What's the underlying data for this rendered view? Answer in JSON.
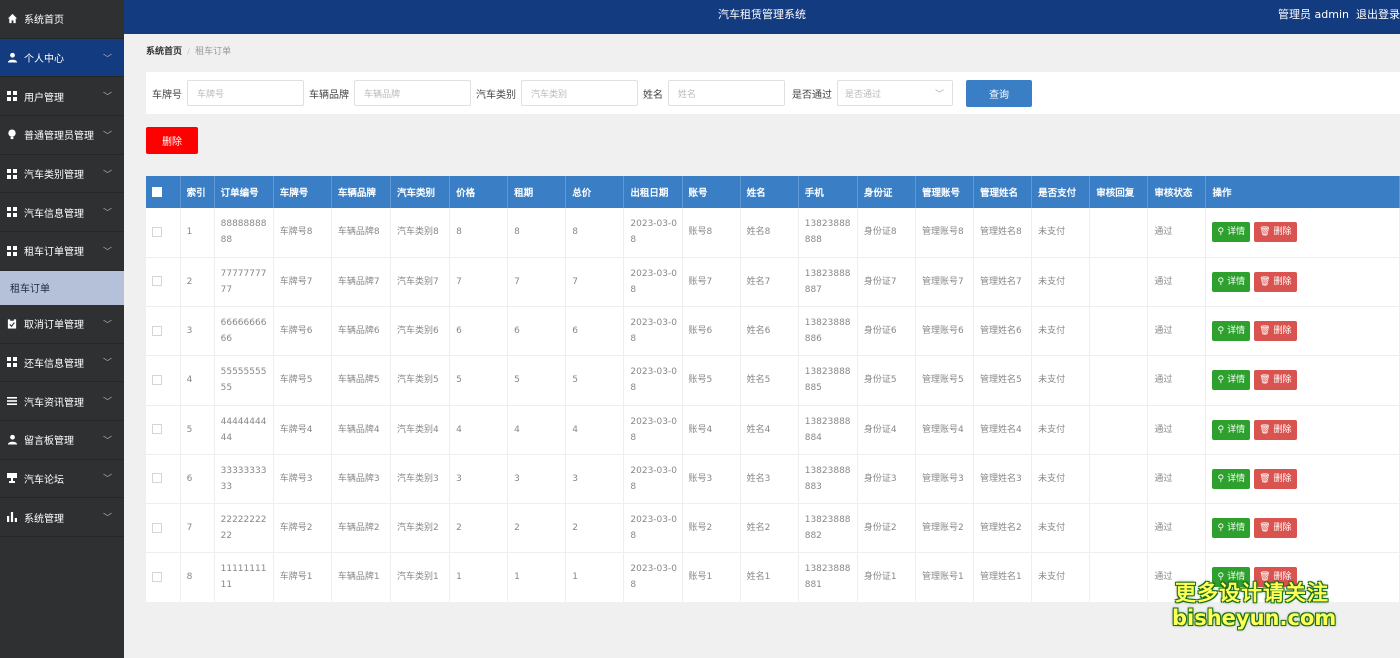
{
  "header": {
    "title": "汽车租赁管理系统",
    "user_label": "管理员 admin",
    "logout_label": "退出登录"
  },
  "sidebar": {
    "items": [
      {
        "label": "系统首页",
        "icon": "home-icon"
      },
      {
        "label": "个人中心",
        "icon": "user-icon"
      },
      {
        "label": "用户管理",
        "icon": "grid-icon"
      },
      {
        "label": "普通管理员管理",
        "icon": "bulb-icon"
      },
      {
        "label": "汽车类别管理",
        "icon": "grid-icon"
      },
      {
        "label": "汽车信息管理",
        "icon": "grid-icon"
      },
      {
        "label": "租车订单管理",
        "icon": "grid-icon"
      },
      {
        "label": "取消订单管理",
        "icon": "clipboard-icon"
      },
      {
        "label": "还车信息管理",
        "icon": "grid-icon"
      },
      {
        "label": "汽车资讯管理",
        "icon": "list-icon"
      },
      {
        "label": "留言板管理",
        "icon": "user-icon"
      },
      {
        "label": "汽车论坛",
        "icon": "cup-icon"
      },
      {
        "label": "系统管理",
        "icon": "bar-chart-icon"
      }
    ],
    "sub_item": "租车订单"
  },
  "breadcrumb": {
    "home": "系统首页",
    "current": "租车订单"
  },
  "search": {
    "plate_label": "车牌号",
    "plate_placeholder": "车牌号",
    "brand_label": "车辆品牌",
    "brand_placeholder": "车辆品牌",
    "category_label": "汽车类别",
    "category_placeholder": "汽车类别",
    "name_label": "姓名",
    "name_placeholder": "姓名",
    "approved_label": "是否通过",
    "approved_placeholder": "是否通过",
    "query_button": "查询"
  },
  "toolbar": {
    "delete_button": "删除"
  },
  "table": {
    "columns": [
      "索引",
      "订单编号",
      "车牌号",
      "车辆品牌",
      "汽车类别",
      "价格",
      "租期",
      "总价",
      "出租日期",
      "账号",
      "姓名",
      "手机",
      "身份证",
      "管理账号",
      "管理姓名",
      "是否支付",
      "审核回复",
      "审核状态",
      "操作"
    ],
    "detail_label": "详情",
    "delete_label": "删除",
    "rows": [
      [
        "1",
        "8888888888",
        "车牌号8",
        "车辆品牌8",
        "汽车类别8",
        "8",
        "8",
        "8",
        "2023-03-08",
        "账号8",
        "姓名8",
        "13823888888",
        "身份证8",
        "管理账号8",
        "管理姓名8",
        "未支付",
        "",
        "通过"
      ],
      [
        "2",
        "7777777777",
        "车牌号7",
        "车辆品牌7",
        "汽车类别7",
        "7",
        "7",
        "7",
        "2023-03-08",
        "账号7",
        "姓名7",
        "13823888887",
        "身份证7",
        "管理账号7",
        "管理姓名7",
        "未支付",
        "",
        "通过"
      ],
      [
        "3",
        "6666666666",
        "车牌号6",
        "车辆品牌6",
        "汽车类别6",
        "6",
        "6",
        "6",
        "2023-03-08",
        "账号6",
        "姓名6",
        "13823888886",
        "身份证6",
        "管理账号6",
        "管理姓名6",
        "未支付",
        "",
        "通过"
      ],
      [
        "4",
        "5555555555",
        "车牌号5",
        "车辆品牌5",
        "汽车类别5",
        "5",
        "5",
        "5",
        "2023-03-08",
        "账号5",
        "姓名5",
        "13823888885",
        "身份证5",
        "管理账号5",
        "管理姓名5",
        "未支付",
        "",
        "通过"
      ],
      [
        "5",
        "4444444444",
        "车牌号4",
        "车辆品牌4",
        "汽车类别4",
        "4",
        "4",
        "4",
        "2023-03-08",
        "账号4",
        "姓名4",
        "13823888884",
        "身份证4",
        "管理账号4",
        "管理姓名4",
        "未支付",
        "",
        "通过"
      ],
      [
        "6",
        "3333333333",
        "车牌号3",
        "车辆品牌3",
        "汽车类别3",
        "3",
        "3",
        "3",
        "2023-03-08",
        "账号3",
        "姓名3",
        "13823888883",
        "身份证3",
        "管理账号3",
        "管理姓名3",
        "未支付",
        "",
        "通过"
      ],
      [
        "7",
        "2222222222",
        "车牌号2",
        "车辆品牌2",
        "汽车类别2",
        "2",
        "2",
        "2",
        "2023-03-08",
        "账号2",
        "姓名2",
        "13823888882",
        "身份证2",
        "管理账号2",
        "管理姓名2",
        "未支付",
        "",
        "通过"
      ],
      [
        "8",
        "1111111111",
        "车牌号1",
        "车辆品牌1",
        "汽车类别1",
        "1",
        "1",
        "1",
        "2023-03-08",
        "账号1",
        "姓名1",
        "13823888881",
        "身份证1",
        "管理账号1",
        "管理姓名1",
        "未支付",
        "",
        "通过"
      ]
    ]
  },
  "watermark": {
    "line1": "更多设计请关注",
    "line2": "bisheyun.com"
  },
  "colors": {
    "primary": "#133b80",
    "table_header": "#3a7fc6",
    "danger": "#ff0000",
    "success": "#2ea02e"
  }
}
